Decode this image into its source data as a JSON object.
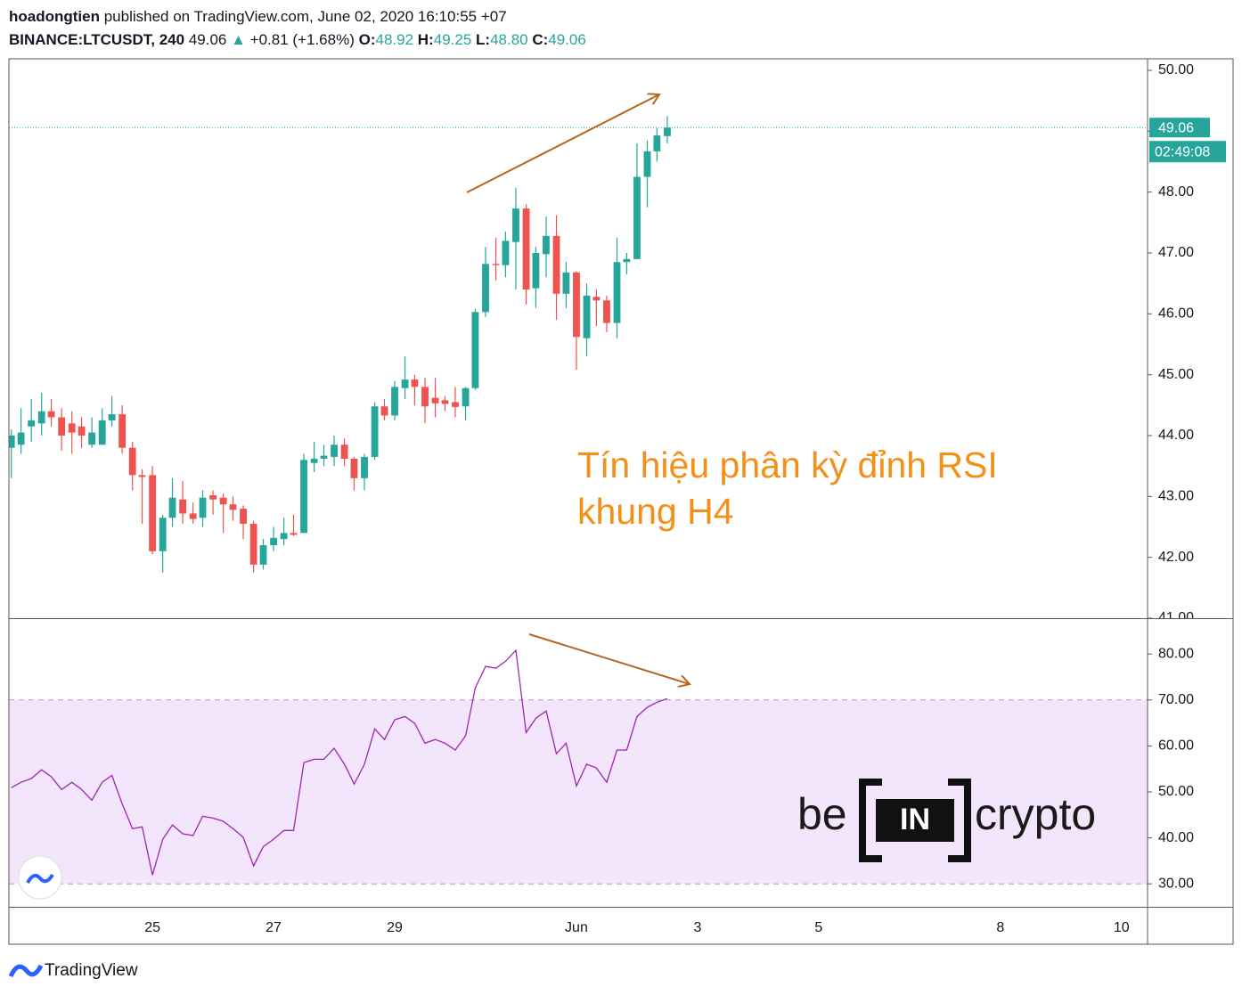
{
  "header": {
    "author": "hoadongtien",
    "published": "published on TradingView.com, June 02, 2020 16:10:55 +07",
    "symbol": "BINANCE:LTCUSDT, 240",
    "last": "49.06",
    "change": "+0.81 (+1.68%)",
    "ohlc": [
      {
        "label": "O:",
        "value": "48.92"
      },
      {
        "label": "H:",
        "value": "49.25"
      },
      {
        "label": "L:",
        "value": "48.80"
      },
      {
        "label": "C:",
        "value": "49.06"
      }
    ]
  },
  "annotation": [
    "Tín hiệu phân kỳ đỉnh RSI",
    "khung H4"
  ],
  "watermark": [
    "be",
    "IN",
    "crypto"
  ],
  "footer": "TradingView",
  "chart_data": [
    {
      "type": "candlestick",
      "x": [
        22.67,
        22.83,
        23,
        23.17,
        23.33,
        23.5,
        23.67,
        23.83,
        24,
        24.17,
        24.33,
        24.5,
        24.67,
        24.83,
        25,
        25.17,
        25.33,
        25.5,
        25.67,
        25.83,
        26,
        26.17,
        26.33,
        26.5,
        26.67,
        26.83,
        27,
        27.17,
        27.33,
        27.5,
        27.67,
        27.83,
        28,
        28.17,
        28.33,
        28.5,
        28.67,
        28.83,
        29,
        29.17,
        29.33,
        29.5,
        29.67,
        29.83,
        30,
        30.17,
        30.33,
        30.5,
        30.67,
        30.83,
        31,
        31.17,
        31.33,
        31.5,
        31.67,
        31.83,
        32,
        32.17,
        32.33,
        32.5,
        32.67,
        32.83,
        33,
        33.17,
        33.33,
        33.5
      ],
      "open": [
        43.8,
        43.85,
        44.15,
        44.2,
        44.4,
        44.3,
        44.2,
        44.15,
        43.85,
        43.85,
        44.25,
        44.35,
        43.8,
        43.35,
        43.35,
        42.1,
        42.65,
        42.95,
        42.72,
        42.65,
        43.02,
        42.98,
        42.87,
        42.8,
        42.55,
        41.88,
        42.2,
        42.3,
        42.4,
        42.4,
        43.55,
        43.62,
        43.65,
        43.85,
        43.62,
        43.3,
        43.65,
        44.48,
        44.33,
        44.78,
        44.92,
        44.8,
        44.62,
        44.58,
        44.55,
        44.48,
        44.78,
        46.03,
        46.82,
        46.8,
        47.18,
        47.73,
        46.42,
        46.98,
        47.28,
        46.33,
        46.68,
        45.6,
        46.28,
        46.22,
        45.85,
        46.85,
        46.9,
        48.25,
        48.67,
        48.92
      ],
      "high": [
        44.1,
        44.45,
        44.6,
        44.7,
        44.6,
        44.45,
        44.4,
        44.3,
        44.3,
        44.45,
        44.65,
        44.5,
        43.9,
        43.45,
        43.5,
        42.7,
        43.3,
        43.25,
        42.9,
        43.1,
        43.1,
        43.05,
        43.0,
        42.85,
        42.6,
        42.3,
        42.5,
        42.65,
        42.7,
        43.7,
        43.9,
        43.85,
        44.0,
        43.95,
        43.65,
        43.7,
        44.55,
        44.6,
        44.9,
        45.3,
        45.0,
        44.95,
        44.95,
        44.65,
        44.8,
        44.8,
        46.08,
        47.1,
        47.25,
        47.35,
        48.07,
        47.8,
        47.1,
        47.6,
        47.62,
        46.85,
        46.7,
        46.5,
        46.4,
        46.3,
        47.25,
        47.0,
        48.8,
        48.85,
        49.05,
        49.25
      ],
      "low": [
        43.3,
        43.7,
        43.9,
        44.0,
        44.15,
        43.75,
        43.7,
        43.8,
        43.8,
        43.85,
        44.15,
        43.7,
        43.1,
        42.55,
        42.05,
        41.75,
        42.5,
        42.55,
        42.55,
        42.5,
        42.7,
        42.4,
        42.6,
        42.3,
        41.75,
        41.8,
        42.1,
        42.2,
        42.35,
        42.4,
        43.4,
        43.5,
        43.5,
        43.5,
        43.1,
        43.1,
        43.6,
        44.25,
        44.25,
        44.6,
        44.5,
        44.2,
        44.3,
        44.4,
        44.3,
        44.25,
        44.75,
        45.95,
        46.55,
        46.6,
        46.4,
        46.15,
        46.1,
        46.6,
        45.9,
        46.1,
        45.08,
        45.3,
        45.8,
        45.7,
        45.6,
        46.65,
        46.9,
        47.75,
        48.5,
        48.8
      ],
      "close": [
        44.0,
        44.05,
        44.25,
        44.4,
        44.3,
        44.0,
        44.05,
        44.0,
        44.05,
        44.25,
        44.35,
        43.8,
        43.35,
        43.32,
        42.1,
        42.65,
        42.98,
        42.72,
        42.63,
        42.98,
        42.95,
        42.87,
        42.78,
        42.55,
        41.88,
        42.2,
        42.32,
        42.4,
        42.37,
        43.6,
        43.62,
        43.67,
        43.85,
        43.62,
        43.3,
        43.65,
        44.48,
        44.33,
        44.8,
        44.92,
        44.8,
        44.48,
        44.53,
        44.52,
        44.47,
        44.78,
        46.03,
        46.82,
        46.8,
        47.2,
        47.73,
        46.4,
        47.0,
        47.28,
        46.33,
        46.68,
        45.62,
        46.3,
        46.22,
        45.85,
        46.85,
        46.9,
        48.25,
        48.67,
        48.93,
        49.06
      ],
      "up_color": "#26a69a",
      "down_color": "#ef5350",
      "xlim": [
        22.63,
        41.43
      ],
      "ylim": [
        41,
        50.19
      ],
      "yticks": [
        {
          "value": 41,
          "label": "41.00"
        },
        {
          "value": 42,
          "label": "42.00"
        },
        {
          "value": 43,
          "label": "43.00"
        },
        {
          "value": 44,
          "label": "44.00"
        },
        {
          "value": 45,
          "label": "45.00"
        },
        {
          "value": 46,
          "label": "46.00"
        },
        {
          "value": 47,
          "label": "47.00"
        },
        {
          "value": 48,
          "label": "48.00"
        },
        {
          "value": 49,
          "label": "49.00"
        },
        {
          "value": 50,
          "label": "50.00"
        }
      ],
      "last_price": {
        "value": 49.06,
        "label": "49.06"
      },
      "countdown": "02:49:08"
    },
    {
      "type": "line",
      "x": [
        22.67,
        22.83,
        23,
        23.17,
        23.33,
        23.5,
        23.67,
        23.83,
        24,
        24.17,
        24.33,
        24.5,
        24.67,
        24.83,
        25,
        25.17,
        25.33,
        25.5,
        25.67,
        25.83,
        26,
        26.17,
        26.33,
        26.5,
        26.67,
        26.83,
        27,
        27.17,
        27.33,
        27.5,
        27.67,
        27.83,
        28,
        28.17,
        28.33,
        28.5,
        28.67,
        28.83,
        29,
        29.17,
        29.33,
        29.5,
        29.67,
        29.83,
        30,
        30.17,
        30.33,
        30.5,
        30.67,
        30.83,
        31,
        31.17,
        31.33,
        31.5,
        31.67,
        31.83,
        32,
        32.17,
        32.33,
        32.5,
        32.67,
        32.83,
        33,
        33.17,
        33.33,
        33.5
      ],
      "values": [
        50.9,
        52.1,
        52.9,
        54.8,
        53.3,
        50.5,
        52.1,
        50.5,
        48.2,
        52.1,
        53.6,
        47.4,
        42.0,
        42.4,
        31.9,
        39.7,
        42.8,
        40.9,
        40.5,
        44.7,
        44.3,
        43.6,
        42.0,
        40.1,
        33.9,
        38.1,
        39.7,
        41.6,
        41.6,
        56.4,
        57.1,
        57.1,
        59.5,
        56.0,
        51.7,
        56.0,
        63.7,
        61.4,
        65.7,
        66.4,
        64.9,
        60.6,
        61.4,
        60.6,
        59.1,
        62.2,
        72.6,
        77.3,
        76.9,
        78.4,
        80.8,
        62.9,
        66.0,
        67.6,
        58.3,
        60.6,
        51.3,
        56.0,
        55.2,
        52.1,
        59.1,
        59.1,
        66.4,
        68.4,
        69.5,
        70.3
      ],
      "color": "#9c27b0",
      "levels": [
        30,
        70
      ],
      "band_color": "#f3e5fb",
      "xlim": [
        22.63,
        41.43
      ],
      "ylim": [
        25,
        87.4
      ],
      "yticks": [
        {
          "value": 30,
          "label": "30.00"
        },
        {
          "value": 40,
          "label": "40.00"
        },
        {
          "value": 50,
          "label": "50.00"
        },
        {
          "value": 60,
          "label": "60.00"
        },
        {
          "value": 70,
          "label": "70.00"
        },
        {
          "value": 80,
          "label": "80.00"
        }
      ],
      "xticks": [
        25,
        27,
        29,
        {
          "value": 32,
          "label": "Jun"
        },
        {
          "value": 34,
          "label": "3"
        },
        {
          "value": 36,
          "label": "5"
        },
        {
          "value": 39,
          "label": "8"
        },
        {
          "value": 41,
          "label": "10"
        }
      ]
    }
  ]
}
